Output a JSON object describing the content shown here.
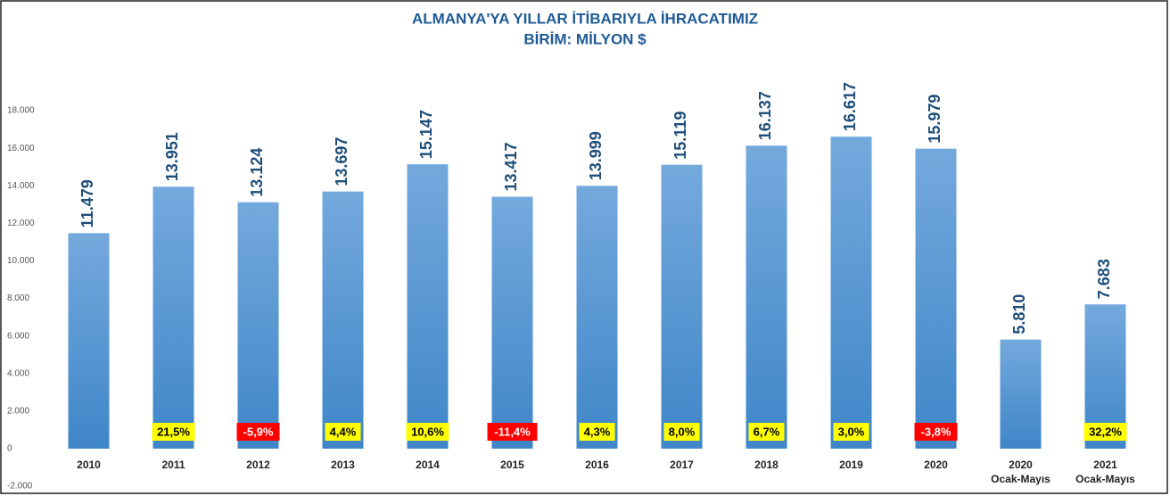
{
  "chart_data": {
    "type": "bar",
    "title": [
      "ALMANYA'YA YILLAR İTİBARIYLA İHRACATIMIZ",
      "BİRİM: MİLYON $"
    ],
    "categories": [
      "2010",
      "2011",
      "2012",
      "2013",
      "2014",
      "2015",
      "2016",
      "2017",
      "2018",
      "2019",
      "2020",
      [
        "2020",
        "Ocak-Mayıs"
      ],
      [
        "2021",
        "Ocak-Mayıs"
      ]
    ],
    "values": [
      11479,
      13951,
      13124,
      13697,
      15147,
      13417,
      13999,
      15119,
      16137,
      16617,
      15979,
      5810,
      7683
    ],
    "value_labels": [
      "11.479",
      "13.951",
      "13.124",
      "13.697",
      "15.147",
      "13.417",
      "13.999",
      "15.119",
      "16.137",
      "16.617",
      "15.979",
      "5.810",
      "7.683"
    ],
    "color": "#5b9bd5",
    "changes": [
      null,
      21.5,
      -5.9,
      4.4,
      10.6,
      -11.4,
      4.3,
      8.0,
      6.7,
      3.0,
      -3.8,
      null,
      32.2
    ],
    "change_labels": [
      null,
      "21,5%",
      "-5,9%",
      "4,4%",
      "10,6%",
      "-11,4%",
      "4,3%",
      "8,0%",
      "6,7%",
      "3,0%",
      "-3,8%",
      null,
      "32,2%"
    ],
    "positive_color": "#ffff00",
    "negative_color": "#ff0000",
    "ylim": [
      -2000,
      20000
    ],
    "yticks": [
      {
        "value": -2000,
        "label": "-2.000"
      },
      0,
      {
        "value": 2000,
        "label": "2.000"
      },
      {
        "value": 4000,
        "label": "4.000"
      },
      {
        "value": 6000,
        "label": "6.000"
      },
      {
        "value": 8000,
        "label": "8.000"
      },
      {
        "value": 10000,
        "label": "10.000"
      },
      {
        "value": 12000,
        "label": "12.000"
      },
      {
        "value": 14000,
        "label": "14.000"
      },
      {
        "value": 16000,
        "label": "16.000"
      },
      {
        "value": 18000,
        "label": "18.000"
      }
    ],
    "grid": false
  }
}
